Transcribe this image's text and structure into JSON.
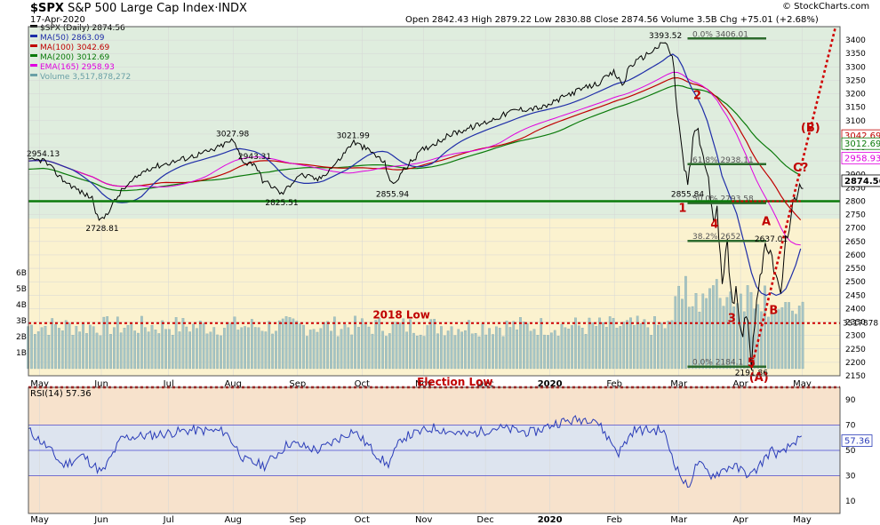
{
  "header": {
    "symbol": "$SPX",
    "name": "S&P 500 Large Cap Index",
    "exchange": "INDX",
    "date": "17-Apr-2020",
    "ohlc": "Open 2842.43  High 2879.22  Low 2830.88  Close 2874.56  Volume 3.5B  Chg +75.01 (+2.68%)",
    "brand": "© StockCharts.com"
  },
  "legend": [
    {
      "label": "$SPX (Daily) 2874.56",
      "color": "#000000"
    },
    {
      "label": "MA(50) 2863.09",
      "color": "#1f2ea8"
    },
    {
      "label": "MA(100) 3042.69",
      "color": "#c00000"
    },
    {
      "label": "MA(200) 3012.69",
      "color": "#0a7a0a"
    },
    {
      "label": "EMA(165) 2958.93",
      "color": "#e000e0"
    },
    {
      "label": "Volume 3,517,878,272",
      "color": "#6aa0a6"
    }
  ],
  "chart_data": {
    "type": "line",
    "title": "$SPX (Daily) 2874.56",
    "x_tick_labels": [
      "May",
      "Jun",
      "Jul",
      "Aug",
      "Sep",
      "Oct",
      "Nov",
      "Dec",
      "2020",
      "Feb",
      "Mar",
      "Apr",
      "May"
    ],
    "ylim": [
      2150,
      3450
    ],
    "y_ticks": [
      2150,
      2200,
      2250,
      2300,
      2350,
      2400,
      2450,
      2500,
      2550,
      2600,
      2650,
      2700,
      2750,
      2800,
      2850,
      2900,
      2950,
      3000,
      3050,
      3100,
      3150,
      3200,
      3250,
      3300,
      3350,
      3400
    ],
    "price_keypoints": [
      {
        "t": 0,
        "v": 2950
      },
      {
        "t": 6,
        "v": 2954.13
      },
      {
        "t": 14,
        "v": 2880
      },
      {
        "t": 22,
        "v": 2830
      },
      {
        "t": 26,
        "v": 2812
      },
      {
        "t": 28,
        "v": 2740
      },
      {
        "t": 30,
        "v": 2728.81
      },
      {
        "t": 38,
        "v": 2840
      },
      {
        "t": 48,
        "v": 2920
      },
      {
        "t": 60,
        "v": 2950
      },
      {
        "t": 75,
        "v": 2990
      },
      {
        "t": 83,
        "v": 3027.98
      },
      {
        "t": 88,
        "v": 2940
      },
      {
        "t": 92,
        "v": 2943.31
      },
      {
        "t": 95,
        "v": 2880
      },
      {
        "t": 100,
        "v": 2850
      },
      {
        "t": 103,
        "v": 2825.51
      },
      {
        "t": 110,
        "v": 2900
      },
      {
        "t": 118,
        "v": 2880
      },
      {
        "t": 126,
        "v": 2950
      },
      {
        "t": 132,
        "v": 3021.99
      },
      {
        "t": 140,
        "v": 2980
      },
      {
        "t": 145,
        "v": 2940
      },
      {
        "t": 147,
        "v": 2880
      },
      {
        "t": 148,
        "v": 2855.94
      },
      {
        "t": 152,
        "v": 2910
      },
      {
        "t": 160,
        "v": 2990
      },
      {
        "t": 172,
        "v": 3050
      },
      {
        "t": 185,
        "v": 3090
      },
      {
        "t": 198,
        "v": 3140
      },
      {
        "t": 210,
        "v": 3150
      },
      {
        "t": 220,
        "v": 3200
      },
      {
        "t": 232,
        "v": 3240
      },
      {
        "t": 238,
        "v": 3280
      },
      {
        "t": 242,
        "v": 3230
      },
      {
        "t": 244,
        "v": 3300
      },
      {
        "t": 252,
        "v": 3350
      },
      {
        "t": 259,
        "v": 3393.52
      },
      {
        "t": 262,
        "v": 3330
      },
      {
        "t": 264,
        "v": 3130
      },
      {
        "t": 266,
        "v": 2960
      },
      {
        "t": 268,
        "v": 2855.84
      },
      {
        "t": 270,
        "v": 3000
      },
      {
        "t": 272,
        "v": 3090
      },
      {
        "t": 274,
        "v": 2970
      },
      {
        "t": 276,
        "v": 2920
      },
      {
        "t": 278,
        "v": 2740
      },
      {
        "t": 280,
        "v": 2760
      },
      {
        "t": 282,
        "v": 2480
      },
      {
        "t": 284,
        "v": 2700
      },
      {
        "t": 286,
        "v": 2390
      },
      {
        "t": 288,
        "v": 2470
      },
      {
        "t": 290,
        "v": 2300
      },
      {
        "t": 292,
        "v": 2400
      },
      {
        "t": 294,
        "v": 2191.86
      },
      {
        "t": 296,
        "v": 2450
      },
      {
        "t": 298,
        "v": 2530
      },
      {
        "t": 300,
        "v": 2630
      },
      {
        "t": 302,
        "v": 2637.01
      },
      {
        "t": 304,
        "v": 2490
      },
      {
        "t": 306,
        "v": 2470
      },
      {
        "t": 308,
        "v": 2640
      },
      {
        "t": 310,
        "v": 2760
      },
      {
        "t": 312,
        "v": 2790
      },
      {
        "t": 314,
        "v": 2850
      },
      {
        "t": 315,
        "v": 2874.56
      }
    ],
    "price_labels": [
      {
        "t": 6,
        "v": 2954.13,
        "text": "2954.13"
      },
      {
        "t": 30,
        "v": 2728.81,
        "text": "2728.81"
      },
      {
        "t": 83,
        "v": 3027.98,
        "text": "3027.98"
      },
      {
        "t": 92,
        "v": 2943.31,
        "text": "2943.31"
      },
      {
        "t": 103,
        "v": 2825.51,
        "text": "2825.51"
      },
      {
        "t": 132,
        "v": 3021.99,
        "text": "3021.99"
      },
      {
        "t": 148,
        "v": 2855.94,
        "text": "2855.94"
      },
      {
        "t": 259,
        "v": 3393.52,
        "text": "3393.52"
      },
      {
        "t": 302,
        "v": 2637.01,
        "text": "2637.01"
      },
      {
        "t": 294,
        "v": 2191.86,
        "text": "2191.86"
      },
      {
        "t": 268,
        "v": 2855.84,
        "text": "2855.84"
      }
    ],
    "fib_levels": [
      {
        "v": 3406,
        "text": "0.0% 3406.01"
      },
      {
        "v": 2938,
        "text": "61.8% 2938.11"
      },
      {
        "v": 2793,
        "text": "50.0% 2793.58"
      },
      {
        "v": 2652,
        "text": "38.2% 2652"
      },
      {
        "v": 2184,
        "text": "0.0% 2184.1"
      }
    ],
    "support_2800": 2800,
    "line_2018_low": 2346,
    "wave_labels": [
      "1",
      "2",
      "3",
      "4",
      "5",
      "A",
      "B",
      "C?",
      "(A)",
      "(B)"
    ],
    "annotations": {
      "low2018": "2018 Low",
      "election_low": "Election Low"
    },
    "right_labels": [
      {
        "text": "3042.69",
        "v": 3042.69,
        "color": "#c00000"
      },
      {
        "text": "3012.69",
        "v": 3012.69,
        "color": "#0a7a0a"
      },
      {
        "text": "2958.93",
        "v": 2958.93,
        "color": "#e000e0"
      },
      {
        "text": "2874.56",
        "v": 2874.56,
        "color": "#000000"
      }
    ],
    "volume_ticks": [
      "1B",
      "2B",
      "3B",
      "4B",
      "5B",
      "6B"
    ],
    "volume_right": "3517878",
    "rsi": {
      "label": "RSI(14) 57.36",
      "value": 57.36,
      "ylim": [
        0,
        100
      ],
      "y_ticks": [
        10,
        30,
        50,
        70,
        90
      ],
      "overbought": 70,
      "oversold": 30,
      "keypoints": [
        {
          "t": 0,
          "v": 66
        },
        {
          "t": 8,
          "v": 52
        },
        {
          "t": 14,
          "v": 38
        },
        {
          "t": 22,
          "v": 46
        },
        {
          "t": 30,
          "v": 32
        },
        {
          "t": 38,
          "v": 60
        },
        {
          "t": 50,
          "v": 62
        },
        {
          "t": 66,
          "v": 66
        },
        {
          "t": 80,
          "v": 65
        },
        {
          "t": 88,
          "v": 42
        },
        {
          "t": 96,
          "v": 38
        },
        {
          "t": 106,
          "v": 56
        },
        {
          "t": 118,
          "v": 50
        },
        {
          "t": 132,
          "v": 66
        },
        {
          "t": 146,
          "v": 38
        },
        {
          "t": 152,
          "v": 60
        },
        {
          "t": 165,
          "v": 68
        },
        {
          "t": 178,
          "v": 62
        },
        {
          "t": 190,
          "v": 68
        },
        {
          "t": 205,
          "v": 64
        },
        {
          "t": 215,
          "v": 72
        },
        {
          "t": 230,
          "v": 76
        },
        {
          "t": 240,
          "v": 48
        },
        {
          "t": 246,
          "v": 66
        },
        {
          "t": 258,
          "v": 66
        },
        {
          "t": 264,
          "v": 34
        },
        {
          "t": 268,
          "v": 20
        },
        {
          "t": 272,
          "v": 40
        },
        {
          "t": 278,
          "v": 30
        },
        {
          "t": 286,
          "v": 38
        },
        {
          "t": 294,
          "v": 30
        },
        {
          "t": 302,
          "v": 50
        },
        {
          "t": 306,
          "v": 46
        },
        {
          "t": 312,
          "v": 58
        },
        {
          "t": 315,
          "v": 57.36
        }
      ]
    }
  }
}
